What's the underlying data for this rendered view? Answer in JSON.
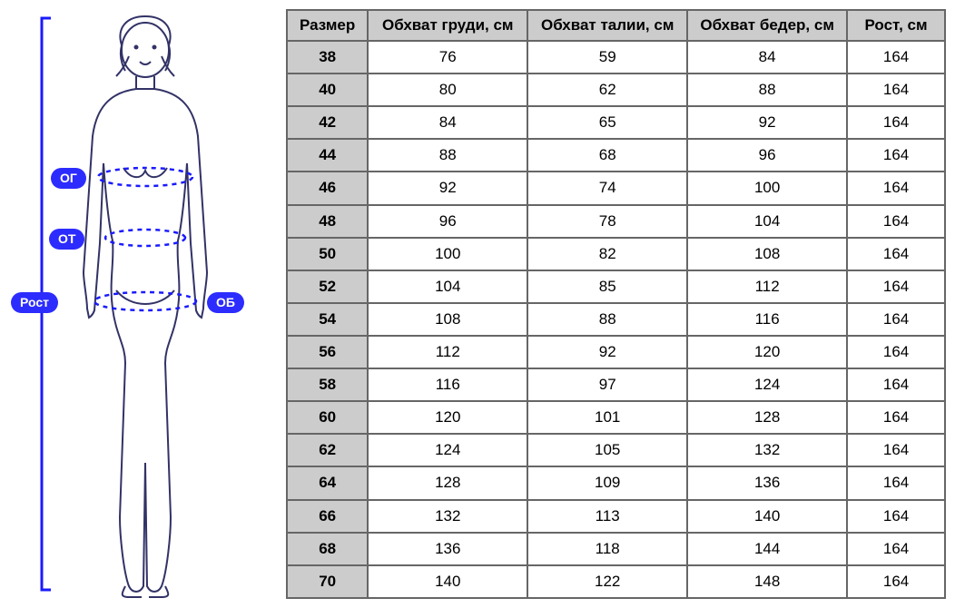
{
  "labels": {
    "og": "ОГ",
    "ot": "ОТ",
    "ob": "ОБ",
    "rost": "Рост"
  },
  "diagram": {
    "pill_bg": "#2c2cff",
    "pill_text_color": "#ffffff",
    "body_stroke": "#323267",
    "measure_stroke": "#1a1aff",
    "measure_dash": "4,4",
    "bracket_stroke": "#1a1aff"
  },
  "table": {
    "columns": [
      "Размер",
      "Обхват груди, см",
      "Обхват талии, см",
      "Обхват бедер, см",
      "Рост, см"
    ],
    "rows": [
      [
        "38",
        "76",
        "59",
        "84",
        "164"
      ],
      [
        "40",
        "80",
        "62",
        "88",
        "164"
      ],
      [
        "42",
        "84",
        "65",
        "92",
        "164"
      ],
      [
        "44",
        "88",
        "68",
        "96",
        "164"
      ],
      [
        "46",
        "92",
        "74",
        "100",
        "164"
      ],
      [
        "48",
        "96",
        "78",
        "104",
        "164"
      ],
      [
        "50",
        "100",
        "82",
        "108",
        "164"
      ],
      [
        "52",
        "104",
        "85",
        "112",
        "164"
      ],
      [
        "54",
        "108",
        "88",
        "116",
        "164"
      ],
      [
        "56",
        "112",
        "92",
        "120",
        "164"
      ],
      [
        "58",
        "116",
        "97",
        "124",
        "164"
      ],
      [
        "60",
        "120",
        "101",
        "128",
        "164"
      ],
      [
        "62",
        "124",
        "105",
        "132",
        "164"
      ],
      [
        "64",
        "128",
        "109",
        "136",
        "164"
      ],
      [
        "66",
        "132",
        "113",
        "140",
        "164"
      ],
      [
        "68",
        "136",
        "118",
        "144",
        "164"
      ],
      [
        "70",
        "140",
        "122",
        "148",
        "164"
      ]
    ],
    "header_bg": "#cccccc",
    "border_color": "#666666",
    "cell_font_size": 17
  }
}
